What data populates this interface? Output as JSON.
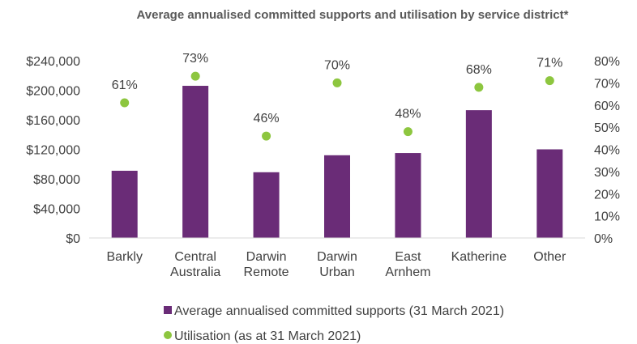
{
  "chart_data": {
    "type": "bar",
    "title": "Average annualised committed supports and utilisation by service district*",
    "categories": [
      [
        "Barkly"
      ],
      [
        "Central",
        "Australia"
      ],
      [
        "Darwin",
        "Remote"
      ],
      [
        "Darwin",
        "Urban"
      ],
      [
        "East",
        "Arnhem"
      ],
      [
        "Katherine"
      ],
      [
        "Other"
      ]
    ],
    "series": [
      {
        "name": "Average annualised committed supports (31 March 2021)",
        "type": "bar",
        "axis": "left",
        "color": "#6a2c77",
        "values": [
          91000,
          206000,
          89000,
          112000,
          115000,
          173000,
          120000
        ]
      },
      {
        "name": "Utilisation (as at 31 March 2021)",
        "type": "scatter",
        "axis": "right",
        "color": "#8dc63f",
        "values": [
          61,
          73,
          46,
          70,
          48,
          68,
          71
        ],
        "labels": [
          "61%",
          "73%",
          "46%",
          "70%",
          "48%",
          "68%",
          "71%"
        ]
      }
    ],
    "y_left": {
      "ylim": [
        0,
        240000
      ],
      "ticks": [
        0,
        40000,
        80000,
        120000,
        160000,
        200000,
        240000
      ],
      "tick_labels": [
        "$0",
        "$40,000",
        "$80,000",
        "$120,000",
        "$160,000",
        "$200,000",
        "$240,000"
      ]
    },
    "y_right": {
      "ylim": [
        0,
        80
      ],
      "ticks": [
        0,
        10,
        20,
        30,
        40,
        50,
        60,
        70,
        80
      ],
      "tick_labels": [
        "0%",
        "10%",
        "20%",
        "30%",
        "40%",
        "50%",
        "60%",
        "70%",
        "80%"
      ]
    },
    "grid": false,
    "legend_position": "bottom"
  }
}
